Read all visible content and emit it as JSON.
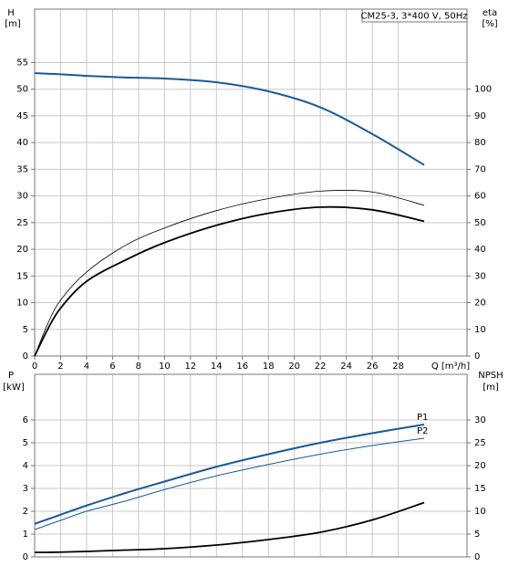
{
  "chart_data": [
    {
      "type": "line",
      "title": "CM25-3, 3*400 V, 50Hz",
      "ylabel": "H",
      "yunit": "[m]",
      "y2label": "eta",
      "y2unit": "[%]",
      "xlabel": "Q [m³/h]",
      "xlim": [
        0,
        33.3
      ],
      "xticks": [
        0,
        2,
        4,
        6,
        8,
        10,
        12,
        14,
        16,
        18,
        20,
        22,
        24,
        26,
        28
      ],
      "ylim": [
        0,
        65
      ],
      "yticks": [
        0,
        5,
        10,
        15,
        20,
        25,
        30,
        35,
        40,
        45,
        50,
        55
      ],
      "y2lim": [
        0,
        130
      ],
      "y2ticks": [
        0,
        10,
        20,
        30,
        40,
        50,
        60,
        70,
        80,
        90,
        100
      ],
      "grid": true,
      "x": [
        0,
        1,
        2,
        4,
        7,
        10,
        14,
        18,
        22,
        26,
        30
      ],
      "series": [
        {
          "color": "#1a5a96",
          "values": [
            53,
            52.9,
            52.8,
            52.5,
            52.2,
            52,
            51.3,
            49.6,
            46.6,
            41.6,
            35.8
          ]
        },
        {
          "color": "#000000",
          "axis": "y2",
          "values": [
            0,
            12,
            21,
            31.5,
            41.5,
            48,
            54.5,
            59,
            61.8,
            61.5,
            56.5
          ]
        },
        {
          "color": "#000000",
          "axis": "y2",
          "values": [
            0,
            10,
            18,
            28,
            36,
            42.5,
            49,
            53.5,
            55.8,
            54.8,
            50.5
          ]
        }
      ]
    },
    {
      "type": "line",
      "ylabel": "P",
      "yunit": "[kW]",
      "y2label": "NPSH",
      "y2unit": "[m]",
      "xlim": [
        0,
        33.3
      ],
      "ylim": [
        0,
        8
      ],
      "yticks": [
        0,
        1,
        2,
        3,
        4,
        5,
        6
      ],
      "y2lim": [
        0,
        40
      ],
      "y2ticks": [
        0,
        5,
        10,
        15,
        20,
        25,
        30
      ],
      "grid": true,
      "x": [
        0,
        1,
        2,
        4,
        7,
        10,
        14,
        18,
        22,
        26,
        30
      ],
      "series": [
        {
          "name": "P1",
          "color": "#1a5a96",
          "values": [
            1.45,
            1.65,
            1.85,
            2.25,
            2.8,
            3.3,
            3.95,
            4.5,
            5.0,
            5.42,
            5.8
          ]
        },
        {
          "name": "P2",
          "color": "#1a5a96",
          "values": [
            1.2,
            1.4,
            1.6,
            2.0,
            2.45,
            2.95,
            3.55,
            4.05,
            4.5,
            4.88,
            5.2
          ]
        },
        {
          "color": "#000000",
          "axis": "y2",
          "values": [
            1,
            1,
            1.05,
            1.2,
            1.5,
            1.8,
            2.6,
            3.8,
            5.4,
            8.1,
            11.9
          ]
        }
      ]
    }
  ]
}
